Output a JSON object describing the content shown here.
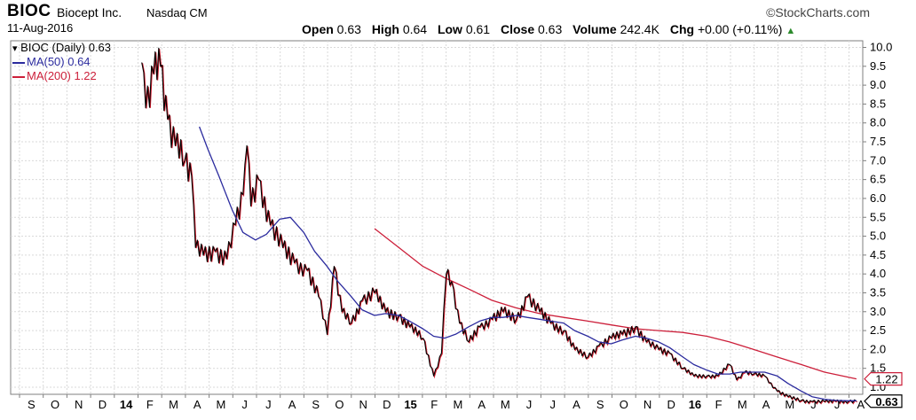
{
  "header": {
    "symbol": "BIOC",
    "company": "Biocept Inc.",
    "exchange": "Nasdaq CM",
    "date": "11-Aug-2016",
    "brand": "©StockCharts.com",
    "open_label": "Open",
    "open": "0.63",
    "high_label": "High",
    "high": "0.64",
    "low_label": "Low",
    "low": "0.61",
    "close_label": "Close",
    "close": "0.63",
    "volume_label": "Volume",
    "volume": "242.4K",
    "chg_label": "Chg",
    "chg": "+0.00 (+0.11%)",
    "chg_icon": "up-triangle-icon"
  },
  "legend": {
    "price": "BIOC (Daily) 0.63",
    "ma50": "MA(50) 0.64",
    "ma200": "MA(200) 1.22"
  },
  "chart_data": {
    "type": "line",
    "ylim": [
      0.45,
      10
    ],
    "y_ticks": [
      "10.0",
      "9.5",
      "9.0",
      "8.5",
      "8.0",
      "7.5",
      "7.0",
      "6.5",
      "6.0",
      "5.5",
      "5.0",
      "4.5",
      "4.0",
      "3.5",
      "3.0",
      "2.5",
      "2.0",
      "1.5",
      "1.0"
    ],
    "x_ticks": [
      "S",
      "O",
      "N",
      "D",
      "14",
      "F",
      "M",
      "A",
      "M",
      "J",
      "J",
      "A",
      "S",
      "O",
      "N",
      "D",
      "15",
      "F",
      "M",
      "A",
      "M",
      "J",
      "J",
      "A",
      "S",
      "O",
      "N",
      "D",
      "16",
      "F",
      "M",
      "A",
      "M",
      "J",
      "J",
      "A"
    ],
    "x_start": "2013-09",
    "series": [
      {
        "name": "BIOC (Daily) 0.63",
        "color": "#000000",
        "x": [
          "2014-02-05",
          "2014-02-10",
          "2014-02-20",
          "2014-03-01",
          "2014-03-10",
          "2014-03-20",
          "2014-04-01",
          "2014-04-10",
          "2014-04-15",
          "2014-04-25",
          "2014-05-10",
          "2014-05-25",
          "2014-06-05",
          "2014-06-15",
          "2014-06-20",
          "2014-06-25",
          "2014-07-05",
          "2014-07-20",
          "2014-08-05",
          "2014-08-20",
          "2014-09-05",
          "2014-09-20",
          "2014-10-01",
          "2014-10-10",
          "2014-10-20",
          "2014-11-01",
          "2014-11-15",
          "2014-12-01",
          "2014-12-15",
          "2015-01-01",
          "2015-01-15",
          "2015-02-01",
          "2015-02-15",
          "2015-02-25",
          "2015-03-03",
          "2015-03-10",
          "2015-03-20",
          "2015-04-01",
          "2015-04-15",
          "2015-05-01",
          "2015-05-15",
          "2015-06-01",
          "2015-06-15",
          "2015-07-01",
          "2015-07-15",
          "2015-08-01",
          "2015-08-15",
          "2015-09-01",
          "2015-09-15",
          "2015-10-01",
          "2015-10-15",
          "2015-11-01",
          "2015-11-15",
          "2015-12-01",
          "2015-12-15",
          "2016-01-01",
          "2016-01-15",
          "2016-02-01",
          "2016-02-15",
          "2016-03-01",
          "2016-03-10",
          "2016-03-20",
          "2016-04-01",
          "2016-04-15",
          "2016-05-01",
          "2016-05-15",
          "2016-06-01",
          "2016-06-15",
          "2016-07-01",
          "2016-07-15",
          "2016-08-01",
          "2016-08-11"
        ],
        "values": [
          9.6,
          8.4,
          9.3,
          9.5,
          8.1,
          7.4,
          7.0,
          6.6,
          4.7,
          4.5,
          4.6,
          4.4,
          5.3,
          6.1,
          7.4,
          5.8,
          6.5,
          5.3,
          4.7,
          4.3,
          4.1,
          3.4,
          2.4,
          4.2,
          3.0,
          2.7,
          3.3,
          3.5,
          3.0,
          2.9,
          2.6,
          2.3,
          1.3,
          1.9,
          4.0,
          3.8,
          2.7,
          2.2,
          2.6,
          2.8,
          3.0,
          2.8,
          3.4,
          3.0,
          2.7,
          2.5,
          2.0,
          1.8,
          2.1,
          2.3,
          2.4,
          2.6,
          2.2,
          2.0,
          1.9,
          1.5,
          1.3,
          1.3,
          1.3,
          1.6,
          1.2,
          1.4,
          1.35,
          1.3,
          0.9,
          0.75,
          0.65,
          0.62,
          0.62,
          0.63,
          0.63,
          0.63
        ]
      },
      {
        "name": "MA(50) 0.64",
        "color": "#2b2b9e",
        "x": [
          "2014-04-20",
          "2014-05-01",
          "2014-05-15",
          "2014-06-01",
          "2014-06-15",
          "2014-07-01",
          "2014-07-15",
          "2014-08-01",
          "2014-08-15",
          "2014-09-01",
          "2014-09-15",
          "2014-10-01",
          "2014-10-15",
          "2014-11-01",
          "2014-11-15",
          "2014-12-01",
          "2014-12-15",
          "2015-01-01",
          "2015-01-15",
          "2015-02-01",
          "2015-02-15",
          "2015-03-01",
          "2015-03-15",
          "2015-04-01",
          "2015-04-15",
          "2015-05-01",
          "2015-05-15",
          "2015-06-01",
          "2015-06-15",
          "2015-07-01",
          "2015-07-15",
          "2015-08-01",
          "2015-08-15",
          "2015-09-01",
          "2015-09-15",
          "2015-10-01",
          "2015-10-15",
          "2015-11-01",
          "2015-11-15",
          "2015-12-01",
          "2015-12-15",
          "2016-01-01",
          "2016-01-15",
          "2016-02-01",
          "2016-02-15",
          "2016-03-01",
          "2016-03-15",
          "2016-04-01",
          "2016-04-15",
          "2016-05-01",
          "2016-05-15",
          "2016-06-01",
          "2016-06-15",
          "2016-07-01",
          "2016-07-15",
          "2016-08-01",
          "2016-08-11"
        ],
        "values": [
          7.9,
          7.3,
          6.6,
          5.7,
          5.1,
          4.9,
          5.05,
          5.45,
          5.5,
          5.1,
          4.6,
          4.2,
          3.8,
          3.4,
          3.05,
          2.9,
          2.95,
          2.9,
          2.75,
          2.55,
          2.35,
          2.3,
          2.4,
          2.6,
          2.75,
          2.85,
          2.85,
          2.9,
          2.85,
          2.8,
          2.75,
          2.7,
          2.5,
          2.35,
          2.2,
          2.15,
          2.25,
          2.35,
          2.3,
          2.2,
          2.05,
          1.8,
          1.6,
          1.45,
          1.35,
          1.35,
          1.4,
          1.4,
          1.4,
          1.3,
          1.1,
          0.9,
          0.75,
          0.68,
          0.65,
          0.64,
          0.64
        ]
      },
      {
        "name": "MA(200) 1.22",
        "color": "#cc1f3a",
        "x": [
          "2014-12-01",
          "2015-01-01",
          "2015-02-01",
          "2015-03-01",
          "2015-04-01",
          "2015-05-01",
          "2015-06-01",
          "2015-07-01",
          "2015-08-01",
          "2015-09-01",
          "2015-10-01",
          "2015-11-01",
          "2015-12-01",
          "2016-01-01",
          "2016-02-01",
          "2016-03-01",
          "2016-04-01",
          "2016-05-01",
          "2016-06-01",
          "2016-07-01",
          "2016-08-11"
        ],
        "values": [
          5.2,
          4.7,
          4.2,
          3.9,
          3.6,
          3.3,
          3.1,
          2.95,
          2.85,
          2.75,
          2.65,
          2.55,
          2.5,
          2.45,
          2.35,
          2.2,
          2.0,
          1.8,
          1.6,
          1.4,
          1.22
        ]
      }
    ],
    "last_value_tags": [
      {
        "label": "1.22",
        "value": 1.22,
        "color": "#cc1f3a"
      },
      {
        "label": "0.63",
        "value": 0.63,
        "color": "#000000"
      }
    ]
  }
}
